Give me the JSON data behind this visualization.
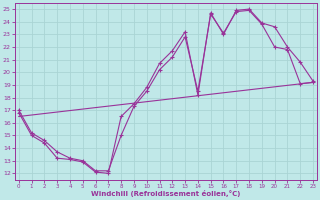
{
  "background_color": "#c0e8e8",
  "grid_color": "#aad4d4",
  "line_color": "#993399",
  "xlabel": "Windchill (Refroidissement éolien,°C)",
  "ylabel_ticks": [
    12,
    13,
    14,
    15,
    16,
    17,
    18,
    19,
    20,
    21,
    22,
    23,
    24,
    25
  ],
  "xticks": [
    0,
    1,
    2,
    3,
    4,
    5,
    6,
    7,
    8,
    9,
    10,
    11,
    12,
    13,
    14,
    15,
    16,
    17,
    18,
    19,
    20,
    21,
    22,
    23
  ],
  "xlim": [
    -0.3,
    23.3
  ],
  "ylim": [
    11.5,
    25.5
  ],
  "line1_x": [
    0,
    1,
    2,
    3,
    4,
    5,
    6,
    7,
    8,
    9,
    10,
    11,
    12,
    13,
    14,
    15,
    16,
    17,
    18,
    19,
    20,
    21,
    22,
    23
  ],
  "line1_y": [
    17.0,
    15.2,
    14.6,
    13.7,
    13.2,
    13.0,
    12.2,
    12.2,
    15.0,
    17.3,
    18.5,
    20.2,
    21.2,
    22.8,
    18.5,
    24.6,
    23.1,
    24.8,
    24.9,
    23.8,
    22.0,
    21.8,
    19.1,
    19.2
  ],
  "line2_x": [
    0,
    1,
    2,
    3,
    4,
    5,
    6,
    7,
    8,
    9,
    10,
    11,
    12,
    13,
    14,
    15,
    16,
    17,
    18,
    19,
    20,
    21,
    22,
    23
  ],
  "line2_y": [
    16.8,
    15.0,
    14.4,
    13.2,
    13.1,
    12.9,
    12.1,
    12.0,
    16.5,
    17.5,
    18.8,
    20.7,
    21.7,
    23.2,
    18.2,
    24.7,
    23.0,
    24.9,
    25.0,
    23.9,
    23.6,
    22.0,
    20.8,
    19.3
  ],
  "line3_x": [
    0,
    23
  ],
  "line3_y": [
    16.5,
    19.2
  ]
}
